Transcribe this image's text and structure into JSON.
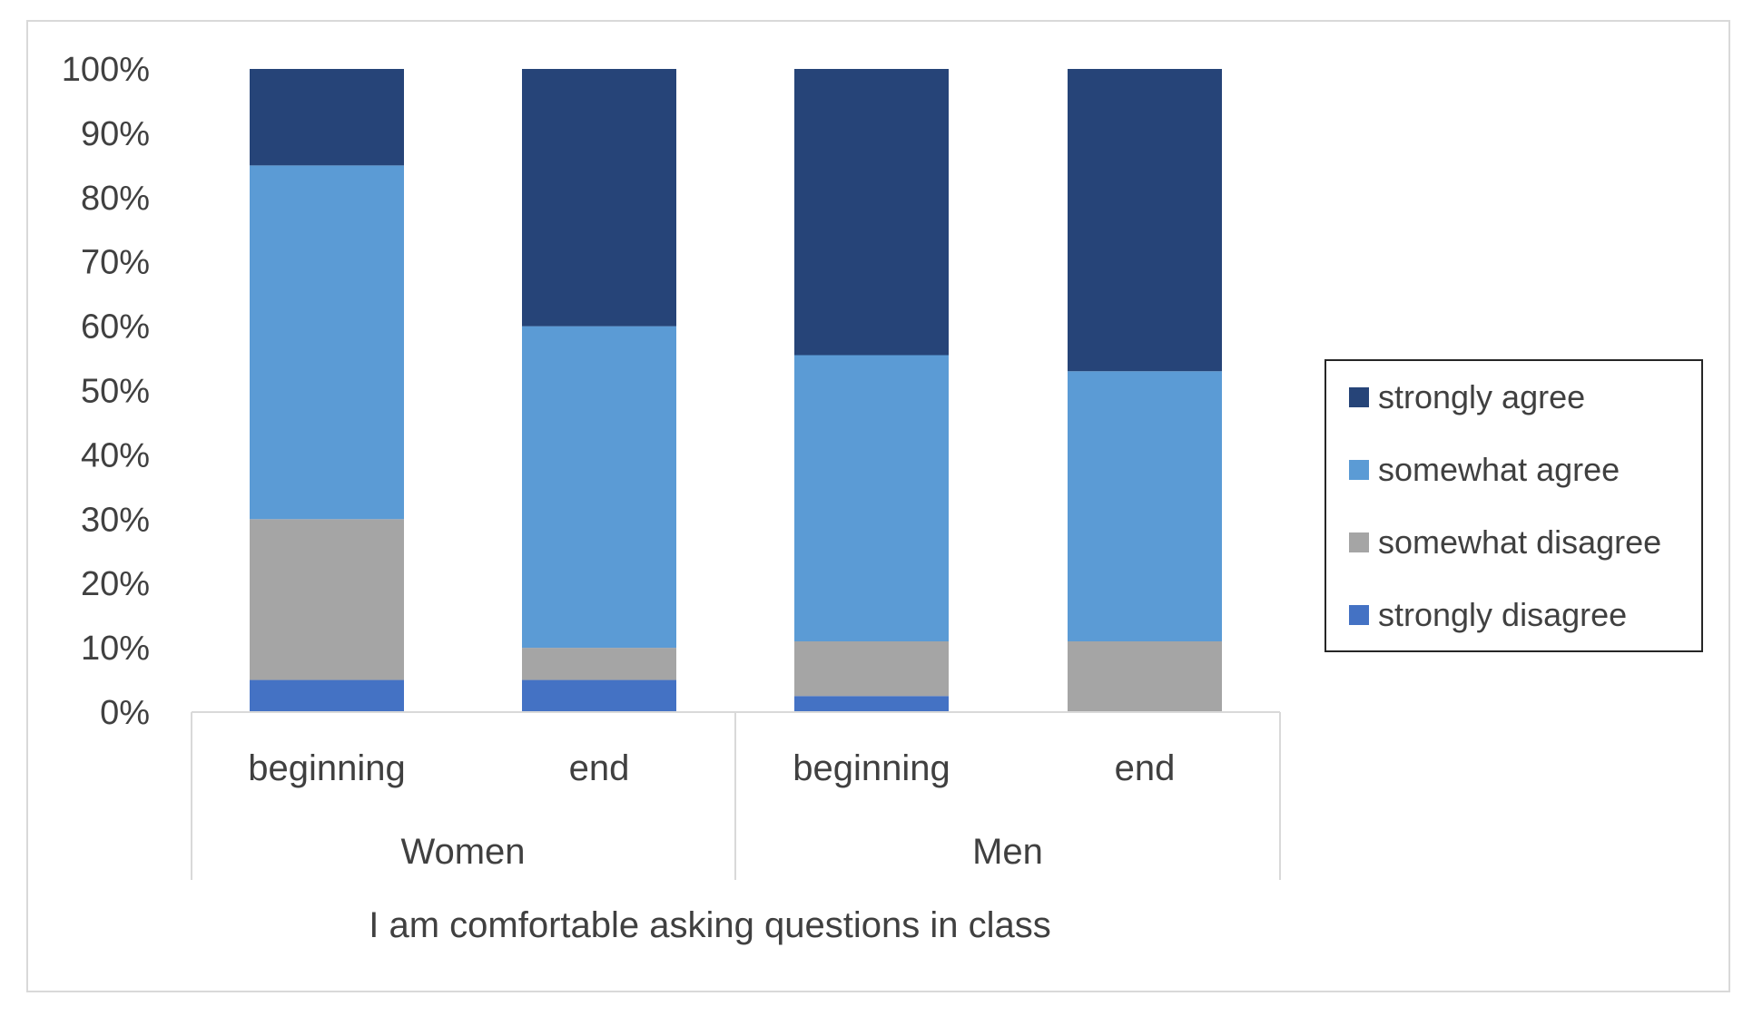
{
  "chart_data": {
    "type": "bar",
    "stacked": true,
    "percent_stacked": true,
    "title": "",
    "xlabel": "I am comfortable asking questions in class",
    "ylabel": "",
    "ylim": [
      0,
      100
    ],
    "y_ticks": [
      "0%",
      "10%",
      "20%",
      "30%",
      "40%",
      "50%",
      "60%",
      "70%",
      "80%",
      "90%",
      "100%"
    ],
    "categories": [
      "beginning",
      "end",
      "beginning",
      "end"
    ],
    "groups": [
      {
        "label": "Women",
        "categories": [
          "beginning",
          "end"
        ]
      },
      {
        "label": "Men",
        "categories": [
          "beginning",
          "end"
        ]
      }
    ],
    "series": [
      {
        "name": "strongly disagree",
        "color": "#4472c4",
        "values": [
          5,
          5,
          2.5,
          0
        ]
      },
      {
        "name": "somewhat disagree",
        "color": "#a5a5a5",
        "values": [
          25,
          5,
          8.5,
          11
        ]
      },
      {
        "name": "somewhat agree",
        "color": "#5b9bd5",
        "values": [
          55,
          50,
          44.5,
          42
        ]
      },
      {
        "name": "strongly agree",
        "color": "#264478",
        "values": [
          15,
          40,
          44.5,
          47
        ]
      }
    ],
    "legend": {
      "position": "right",
      "order": [
        "strongly agree",
        "somewhat agree",
        "somewhat disagree",
        "strongly disagree"
      ]
    },
    "grid": false
  }
}
